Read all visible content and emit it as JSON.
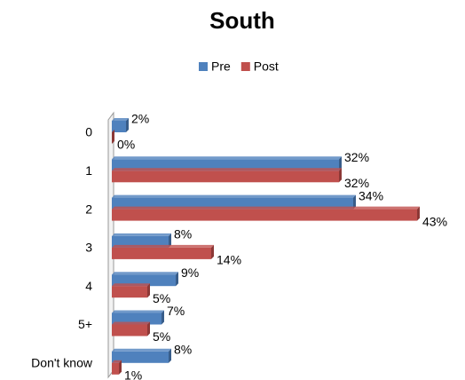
{
  "chart_data": {
    "type": "bar",
    "orientation": "horizontal",
    "title": "South",
    "categories": [
      "0",
      "1",
      "2",
      "3",
      "4",
      "5+",
      "Don't know"
    ],
    "series": [
      {
        "name": "Pre",
        "color": "#4f81bd",
        "values": [
          2,
          32,
          34,
          8,
          9,
          7,
          8
        ],
        "value_labels": [
          "2%",
          "32%",
          "34%",
          "8%",
          "9%",
          "7%",
          "8%"
        ]
      },
      {
        "name": "Post",
        "color": "#c0504d",
        "values": [
          0,
          32,
          43,
          14,
          5,
          5,
          1
        ],
        "value_labels": [
          "0%",
          "32%",
          "43%",
          "14%",
          "5%",
          "5%",
          "1%"
        ]
      }
    ],
    "xlim": [
      0,
      45
    ],
    "legend": "top"
  }
}
